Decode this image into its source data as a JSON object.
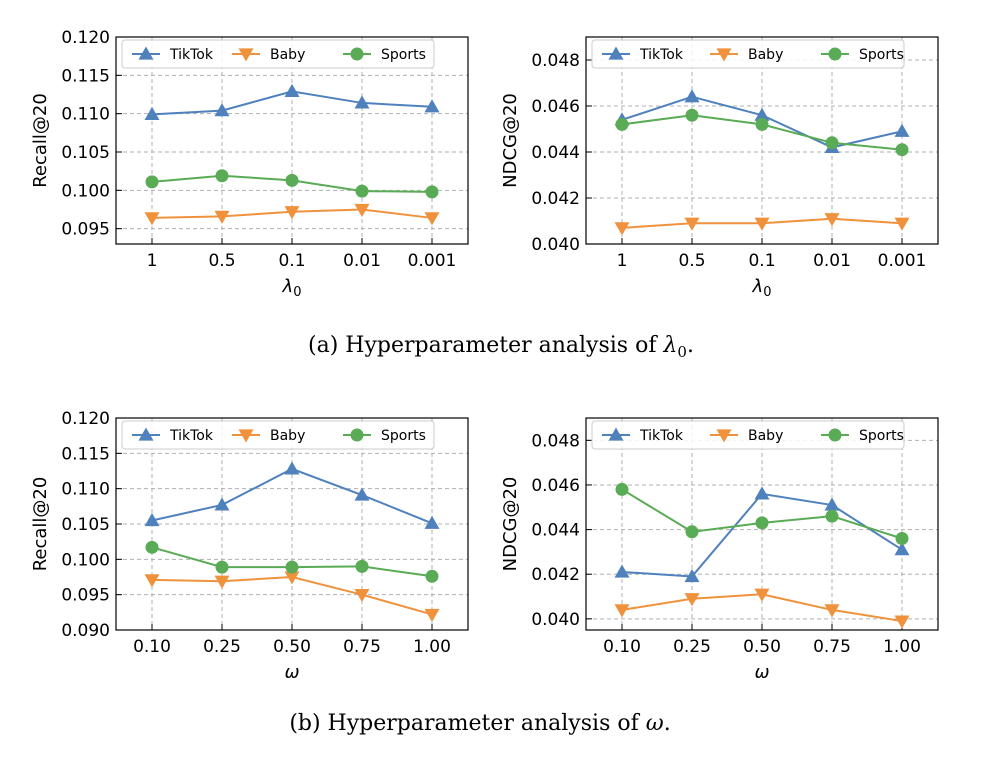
{
  "colors": {
    "TikTok": "#4f81bd",
    "Baby": "#f0923c",
    "Sports": "#5aab55"
  },
  "captions": {
    "a_prefix": "(a)  Hyperparameter analysis of ",
    "a_symbol": "λ",
    "a_sub": "0",
    "a_suffix": ".",
    "b_prefix": "(b)  Hyperparameter analysis of ",
    "b_symbol": "ω",
    "b_suffix": "."
  },
  "chart_data": [
    {
      "type": "line",
      "xlabel": "λ0",
      "ylabel": "Recall@20",
      "categories": [
        "1",
        "0.5",
        "0.1",
        "0.01",
        "0.001"
      ],
      "ylim": [
        0.093,
        0.12
      ],
      "yticks": [
        "0.095",
        "0.100",
        "0.105",
        "0.110",
        "0.115",
        "0.120"
      ],
      "grid": true,
      "legend": "top",
      "series": [
        {
          "name": "TikTok",
          "marker": "triangle-up",
          "values": [
            0.1099,
            0.1104,
            0.1129,
            0.1114,
            0.1109
          ]
        },
        {
          "name": "Baby",
          "marker": "triangle-down",
          "values": [
            0.0964,
            0.0966,
            0.0972,
            0.0975,
            0.0964
          ]
        },
        {
          "name": "Sports",
          "marker": "circle",
          "values": [
            0.1011,
            0.1019,
            0.1013,
            0.0999,
            0.0998
          ]
        }
      ]
    },
    {
      "type": "line",
      "xlabel": "λ0",
      "ylabel": "NDCG@20",
      "categories": [
        "1",
        "0.5",
        "0.1",
        "0.01",
        "0.001"
      ],
      "ylim": [
        0.04,
        0.049
      ],
      "yticks": [
        "0.040",
        "0.042",
        "0.044",
        "0.046",
        "0.048"
      ],
      "grid": true,
      "legend": "top",
      "series": [
        {
          "name": "TikTok",
          "marker": "triangle-up",
          "values": [
            0.0454,
            0.0464,
            0.0456,
            0.0442,
            0.0449
          ]
        },
        {
          "name": "Baby",
          "marker": "triangle-down",
          "values": [
            0.0407,
            0.0409,
            0.0409,
            0.0411,
            0.0409
          ]
        },
        {
          "name": "Sports",
          "marker": "circle",
          "values": [
            0.0452,
            0.0456,
            0.0452,
            0.0444,
            0.0441
          ]
        }
      ]
    },
    {
      "type": "line",
      "xlabel": "ω",
      "ylabel": "Recall@20",
      "categories": [
        "0.10",
        "0.25",
        "0.50",
        "0.75",
        "1.00"
      ],
      "ylim": [
        0.09,
        0.12
      ],
      "yticks": [
        "0.090",
        "0.095",
        "0.100",
        "0.105",
        "0.110",
        "0.115",
        "0.120"
      ],
      "grid": true,
      "legend": "top",
      "series": [
        {
          "name": "TikTok",
          "marker": "triangle-up",
          "values": [
            0.1055,
            0.1077,
            0.1128,
            0.1091,
            0.1051
          ]
        },
        {
          "name": "Baby",
          "marker": "triangle-down",
          "values": [
            0.0971,
            0.0969,
            0.0975,
            0.095,
            0.0922
          ]
        },
        {
          "name": "Sports",
          "marker": "circle",
          "values": [
            0.1017,
            0.0989,
            0.0989,
            0.099,
            0.0976
          ]
        }
      ]
    },
    {
      "type": "line",
      "xlabel": "ω",
      "ylabel": "NDCG@20",
      "categories": [
        "0.10",
        "0.25",
        "0.50",
        "0.75",
        "1.00"
      ],
      "ylim": [
        0.0395,
        0.049
      ],
      "yticks": [
        "0.040",
        "0.042",
        "0.044",
        "0.046",
        "0.048"
      ],
      "grid": true,
      "legend": "top",
      "series": [
        {
          "name": "TikTok",
          "marker": "triangle-up",
          "values": [
            0.0421,
            0.0419,
            0.0456,
            0.0451,
            0.0431
          ]
        },
        {
          "name": "Baby",
          "marker": "triangle-down",
          "values": [
            0.0404,
            0.0409,
            0.0411,
            0.0404,
            0.0399
          ]
        },
        {
          "name": "Sports",
          "marker": "circle",
          "values": [
            0.0458,
            0.0439,
            0.0443,
            0.0446,
            0.0436
          ]
        }
      ]
    }
  ]
}
